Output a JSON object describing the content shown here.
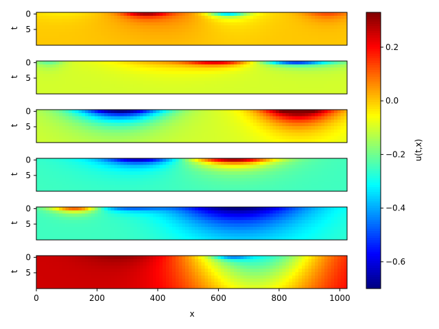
{
  "chart_data": {
    "type": "heatmap",
    "colormap": "jet",
    "vmin": -0.7,
    "vmax": 0.33,
    "xlabel": "x",
    "xlim": [
      0,
      1024
    ],
    "x_ticks": [
      "0",
      "200",
      "400",
      "600",
      "800",
      "1000"
    ],
    "x_tick_values": [
      0,
      200,
      400,
      600,
      800,
      1000
    ],
    "t_range": [
      0,
      9
    ],
    "colorbar": {
      "label": "u(t,x)",
      "ticks": [
        "0.2",
        "0.0",
        "−0.2",
        "−0.4",
        "−0.6"
      ],
      "tick_values": [
        0.2,
        0.0,
        -0.2,
        -0.4,
        -0.6
      ]
    },
    "panels": [
      {
        "ylabel": "t",
        "y_ticks": [
          "0",
          "5"
        ],
        "y_tick_values": [
          0,
          5
        ],
        "base": 0.0,
        "features": [
          {
            "x": 100,
            "amp": -0.05,
            "wx": 150,
            "td": 2.5
          },
          {
            "x": 360,
            "amp": 0.33,
            "wx": 70,
            "td": 1.0
          },
          {
            "x": 420,
            "amp": 0.1,
            "wx": 200,
            "td": 5.0
          },
          {
            "x": 630,
            "amp": -0.5,
            "wx": 60,
            "td": 0.8
          },
          {
            "x": 640,
            "amp": -0.1,
            "wx": 120,
            "td": 4.0
          },
          {
            "x": 960,
            "amp": 0.15,
            "wx": 80,
            "td": 2.0
          }
        ]
      },
      {
        "ylabel": "t",
        "y_ticks": [
          "0",
          "5"
        ],
        "y_tick_values": [
          0,
          5
        ],
        "base": -0.1,
        "features": [
          {
            "x": 600,
            "amp": 0.4,
            "wx": 100,
            "td": 1.0
          },
          {
            "x": 450,
            "amp": 0.15,
            "wx": 200,
            "td": 2.5
          },
          {
            "x": 850,
            "amp": -0.6,
            "wx": 90,
            "td": 0.6
          },
          {
            "x": 900,
            "amp": -0.2,
            "wx": 150,
            "td": 1.5
          },
          {
            "x": 40,
            "amp": -0.15,
            "wx": 50,
            "td": 1.5
          }
        ]
      },
      {
        "ylabel": "t",
        "y_ticks": [
          "0",
          "5"
        ],
        "y_tick_values": [
          0,
          5
        ],
        "base": -0.1,
        "features": [
          {
            "x": 280,
            "amp": -0.55,
            "wx": 130,
            "td": 2.5
          },
          {
            "x": 250,
            "amp": -0.15,
            "wx": 200,
            "td": 6.0
          },
          {
            "x": 860,
            "amp": 0.45,
            "wx": 110,
            "td": 3.0
          },
          {
            "x": 880,
            "amp": 0.15,
            "wx": 180,
            "td": 7.0
          }
        ]
      },
      {
        "ylabel": "t",
        "y_ticks": [
          "0",
          "5"
        ],
        "y_tick_values": [
          0,
          5
        ],
        "base": -0.25,
        "features": [
          {
            "x": 340,
            "amp": -0.4,
            "wx": 110,
            "td": 1.5
          },
          {
            "x": 300,
            "amp": -0.1,
            "wx": 200,
            "td": 4.0
          },
          {
            "x": 650,
            "amp": 0.55,
            "wx": 120,
            "td": 1.5
          },
          {
            "x": 650,
            "amp": 0.15,
            "wx": 200,
            "td": 4.0
          }
        ]
      },
      {
        "ylabel": "t",
        "y_ticks": [
          "0",
          "5"
        ],
        "y_tick_values": [
          0,
          5
        ],
        "base": -0.25,
        "features": [
          {
            "x": 130,
            "amp": 0.55,
            "wx": 80,
            "td": 1.2
          },
          {
            "x": 300,
            "amp": -0.3,
            "wx": 120,
            "td": 1.0
          },
          {
            "x": 640,
            "amp": -0.35,
            "wx": 200,
            "td": 6.0
          },
          {
            "x": 750,
            "amp": -0.15,
            "wx": 250,
            "td": 10.0
          }
        ]
      },
      {
        "ylabel": "t",
        "y_ticks": [
          "0",
          "5"
        ],
        "y_tick_values": [
          0,
          5
        ],
        "base": 0.25,
        "features": [
          {
            "x": 720,
            "amp": -0.55,
            "wx": 230,
            "td": 20.0
          },
          {
            "x": 640,
            "amp": -0.35,
            "wx": 60,
            "td": 0.8
          },
          {
            "x": 300,
            "amp": 0.08,
            "wx": 150,
            "td": 3.0
          }
        ]
      }
    ]
  }
}
